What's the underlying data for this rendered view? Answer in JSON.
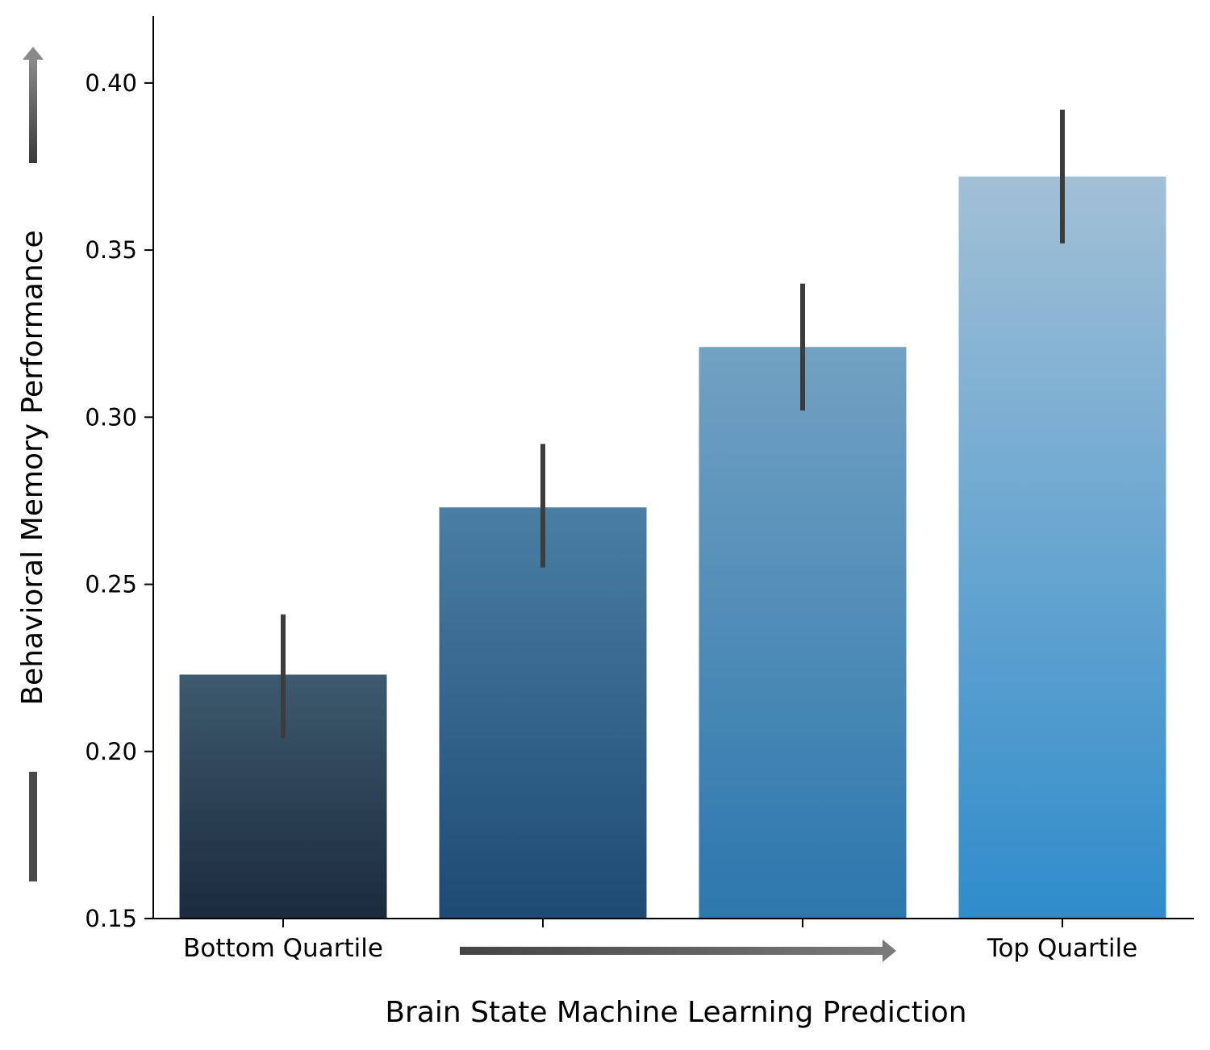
{
  "chart_data": {
    "type": "bar",
    "title": "",
    "xlabel": "Brain State Machine Learning Prediction",
    "ylabel": "Behavioral Memory Performance",
    "ylim": [
      0.15,
      0.42
    ],
    "yticks": [
      "0.15",
      "0.20",
      "0.25",
      "0.30",
      "0.35",
      "0.40"
    ],
    "category_labels": [
      "Bottom Quartile",
      "",
      "",
      "Top Quartile"
    ],
    "values": [
      0.223,
      0.273,
      0.321,
      0.372
    ],
    "error_low": [
      0.204,
      0.255,
      0.302,
      0.352
    ],
    "error_high": [
      0.241,
      0.292,
      0.34,
      0.392
    ],
    "grid": false,
    "legend": "none",
    "colors": {
      "bar_top": [
        "#3e5a6e",
        "#4a7ea3",
        "#72a1c2",
        "#a2c0d6"
      ],
      "bar_bottom": [
        "#1b2a3d",
        "#1d4a73",
        "#2c77ad",
        "#2f8ccb"
      ],
      "error_bar": "#3c3c3c",
      "axis": "#000000",
      "arrow": "#555555"
    }
  }
}
